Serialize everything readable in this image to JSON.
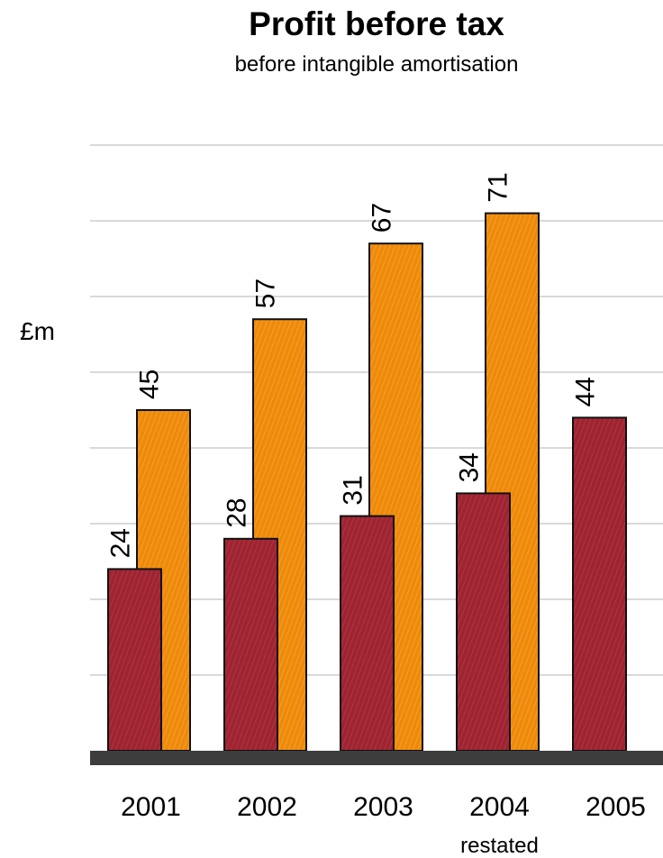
{
  "chart_data": {
    "type": "bar",
    "title": "Profit before tax",
    "subtitle": "before intangible amortisation",
    "ylabel": "£m",
    "xlabel": "",
    "categories": [
      "2001",
      "2002",
      "2003",
      "2004",
      "2005"
    ],
    "category_sublabels": [
      "",
      "",
      "",
      "restated",
      ""
    ],
    "series": [
      {
        "values": [
          24,
          28,
          31,
          34,
          44
        ],
        "color": "#9e2432"
      },
      {
        "values": [
          45,
          57,
          67,
          71,
          null
        ],
        "color": "#f08a0e"
      }
    ],
    "ylim": [
      0,
      80
    ],
    "grid": true,
    "legend": "none"
  }
}
